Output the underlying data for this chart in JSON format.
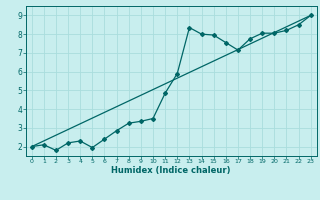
{
  "title": "",
  "xlabel": "Humidex (Indice chaleur)",
  "bg_color": "#c8eeee",
  "line_color": "#006666",
  "grid_color": "#aadddd",
  "xlim": [
    -0.5,
    23.5
  ],
  "ylim": [
    1.5,
    9.5
  ],
  "xticks": [
    0,
    1,
    2,
    3,
    4,
    5,
    6,
    7,
    8,
    9,
    10,
    11,
    12,
    13,
    14,
    15,
    16,
    17,
    18,
    19,
    20,
    21,
    22,
    23
  ],
  "yticks": [
    2,
    3,
    4,
    5,
    6,
    7,
    8,
    9
  ],
  "curve_x": [
    0,
    1,
    2,
    3,
    4,
    5,
    6,
    7,
    8,
    9,
    10,
    11,
    12,
    13,
    14,
    15,
    16,
    17,
    18,
    19,
    20,
    21,
    22,
    23
  ],
  "curve_y": [
    2.0,
    2.1,
    1.8,
    2.2,
    2.3,
    1.95,
    2.4,
    2.85,
    3.25,
    3.35,
    3.5,
    4.85,
    5.9,
    8.35,
    8.0,
    7.95,
    7.55,
    7.15,
    7.75,
    8.05,
    8.05,
    8.2,
    8.5,
    9.0
  ],
  "line_x": [
    0,
    23
  ],
  "line_y": [
    2.0,
    9.0
  ]
}
